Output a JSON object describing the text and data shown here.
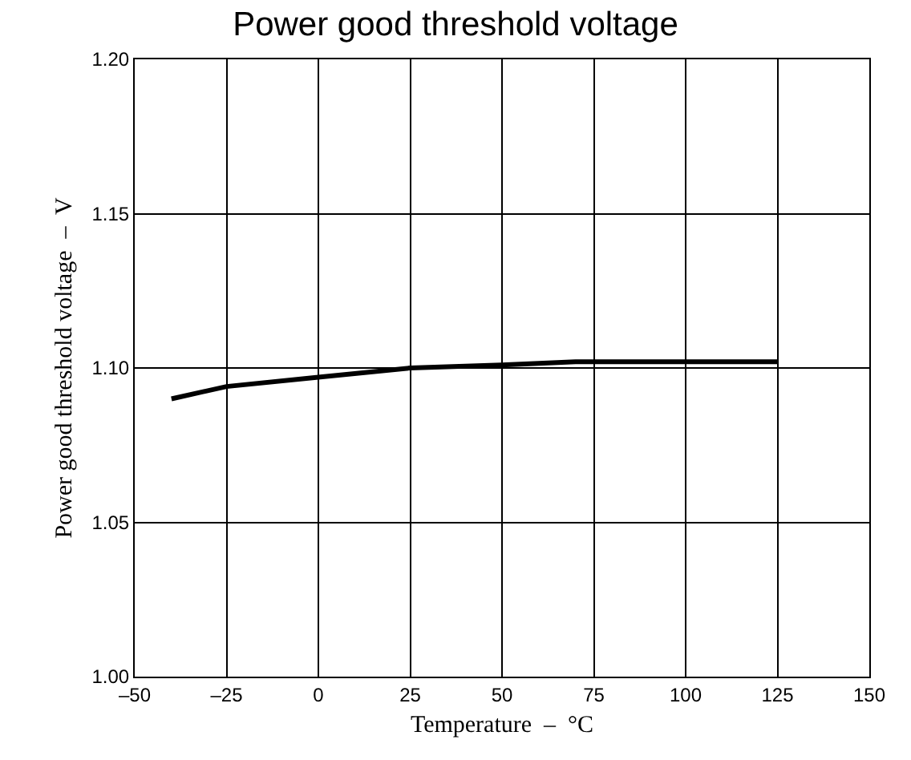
{
  "chart_data": {
    "type": "line",
    "title": "Power good threshold voltage",
    "xlabel": "Temperature  –  °C",
    "ylabel": "Power good threshold voltage  –  V",
    "x": [
      -40,
      -25,
      0,
      25,
      50,
      70,
      115,
      125
    ],
    "series": [
      {
        "color": "#000000",
        "values": [
          1.09,
          1.094,
          1.097,
          1.1,
          1.101,
          1.102,
          1.102,
          1.102
        ]
      }
    ],
    "xlim": [
      -50,
      150
    ],
    "xticks": [
      {
        "value": -50,
        "label": "–50"
      },
      {
        "value": -25,
        "label": "–25"
      },
      0,
      25,
      50,
      75,
      100,
      125,
      150
    ],
    "ylim": [
      1.0,
      1.2
    ],
    "yticks": [
      {
        "value": 1.0,
        "label": "1.00"
      },
      {
        "value": 1.05,
        "label": "1.05"
      },
      {
        "value": 1.1,
        "label": "1.10"
      },
      {
        "value": 1.15,
        "label": "1.15"
      },
      {
        "value": 1.2,
        "label": "1.20"
      }
    ],
    "grid": true,
    "marker": "none",
    "line_style": "solid"
  }
}
